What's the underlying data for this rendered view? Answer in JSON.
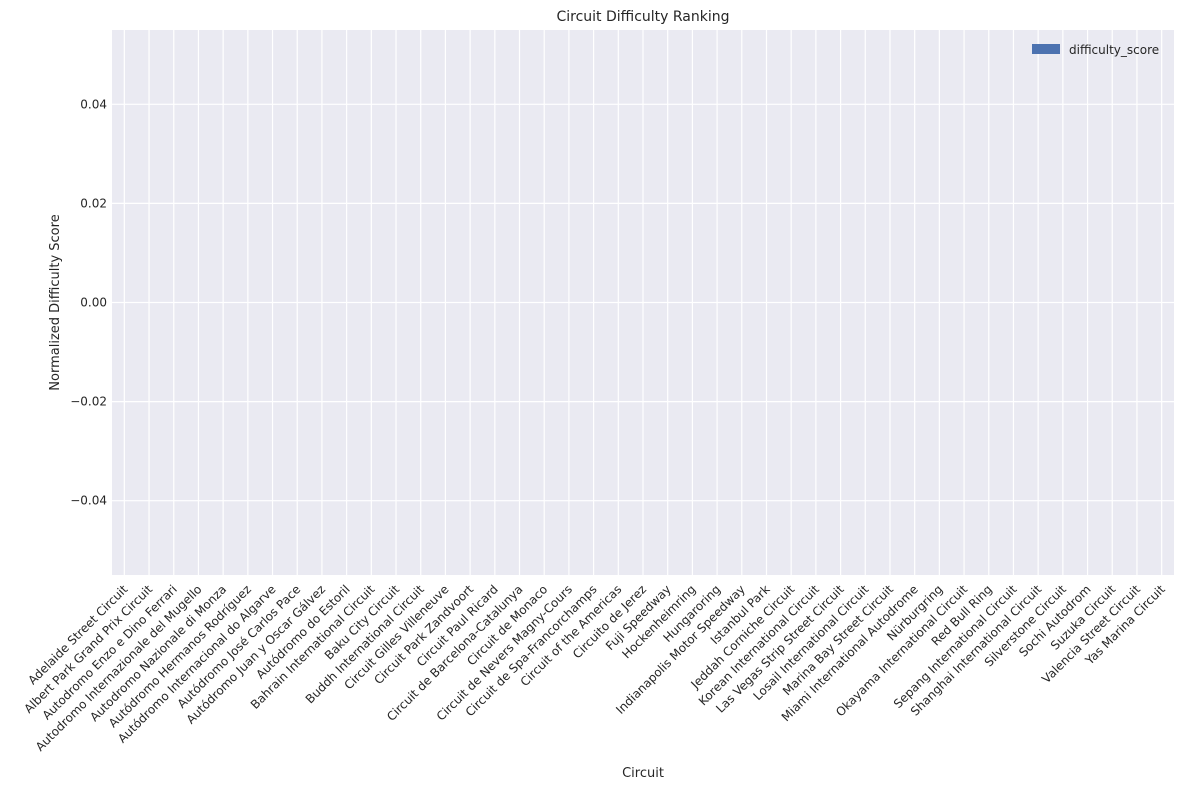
{
  "chart_data": {
    "type": "bar",
    "title": "Circuit Difficulty Ranking",
    "xlabel": "Circuit",
    "ylabel": "Normalized Difficulty Score",
    "ylim": [
      -0.055,
      0.055
    ],
    "yticks": [
      -0.04,
      -0.02,
      0.0,
      0.02,
      0.04
    ],
    "ytick_labels": [
      "−0.04",
      "−0.02",
      "0.00",
      "0.02",
      "0.04"
    ],
    "grid": true,
    "legend_position": "top-right",
    "categories": [
      "Adelaide Street Circuit",
      "Albert Park Grand Prix Circuit",
      "Autodromo Enzo e Dino Ferrari",
      "Autodromo Internazionale del Mugello",
      "Autodromo Nazionale di Monza",
      "Autódromo Hermanos Rodríguez",
      "Autódromo Internacional do Algarve",
      "Autódromo José Carlos Pace",
      "Autódromo Juan y Oscar Gálvez",
      "Autódromo do Estoril",
      "Bahrain International Circuit",
      "Baku City Circuit",
      "Buddh International Circuit",
      "Circuit Gilles Villeneuve",
      "Circuit Park Zandvoort",
      "Circuit Paul Ricard",
      "Circuit de Barcelona-Catalunya",
      "Circuit de Monaco",
      "Circuit de Nevers Magny-Cours",
      "Circuit de Spa-Francorchamps",
      "Circuit of the Americas",
      "Circuito de Jerez",
      "Fuji Speedway",
      "Hockenheimring",
      "Hungaroring",
      "Indianapolis Motor Speedway",
      "Istanbul Park",
      "Jeddah Corniche Circuit",
      "Korean International Circuit",
      "Las Vegas Strip Street Circuit",
      "Losail International Circuit",
      "Marina Bay Street Circuit",
      "Miami International Autodrome",
      "Nürburgring",
      "Okayama International Circuit",
      "Red Bull Ring",
      "Sepang International Circuit",
      "Shanghai International Circuit",
      "Silverstone Circuit",
      "Sochi Autodrom",
      "Suzuka Circuit",
      "Valencia Street Circuit",
      "Yas Marina Circuit"
    ],
    "series": [
      {
        "name": "difficulty_score",
        "color": "#4c72b0",
        "values": [
          0,
          0,
          0,
          0,
          0,
          0,
          0,
          0,
          0,
          0,
          0,
          0,
          0,
          0,
          0,
          0,
          0,
          0,
          0,
          0,
          0,
          0,
          0,
          0,
          0,
          0,
          0,
          0,
          0,
          0,
          0,
          0,
          0,
          0,
          0,
          0,
          0,
          0,
          0,
          0,
          0,
          0,
          0
        ]
      }
    ]
  },
  "colors": {
    "plot_background": "#eaeaf2",
    "grid": "#ffffff",
    "text": "#262626"
  }
}
